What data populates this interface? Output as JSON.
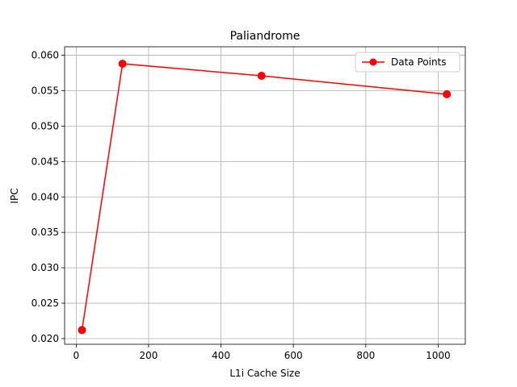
{
  "chart_data": {
    "type": "line",
    "title": "Paliandrome",
    "xlabel": "L1i Cache Size",
    "ylabel": "IPC",
    "xlim": [
      -32,
      1075
    ],
    "ylim": [
      0.0192,
      0.0612
    ],
    "xticks": [
      0,
      200,
      400,
      600,
      800,
      1000
    ],
    "xtick_labels": [
      "0",
      "200",
      "400",
      "600",
      "800",
      "1000"
    ],
    "yticks": [
      0.02,
      0.025,
      0.03,
      0.035,
      0.04,
      0.045,
      0.05,
      0.055,
      0.06
    ],
    "ytick_labels": [
      "0.020",
      "0.025",
      "0.030",
      "0.035",
      "0.040",
      "0.045",
      "0.050",
      "0.055",
      "0.060"
    ],
    "grid": true,
    "legend_position": "top-right",
    "series": [
      {
        "name": "Data Points",
        "color": "#ff0000",
        "marker": "circle",
        "x": [
          16,
          128,
          512,
          1024
        ],
        "y": [
          0.0212,
          0.0588,
          0.0571,
          0.0545
        ]
      }
    ]
  }
}
